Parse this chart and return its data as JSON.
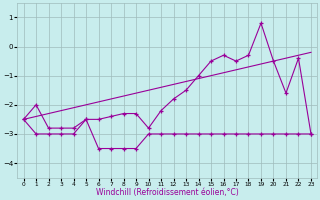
{
  "xlabel": "Windchill (Refroidissement éolien,°C)",
  "bg_color": "#c8eded",
  "line_color": "#990099",
  "grid_color": "#9fbcbc",
  "ylim": [
    -4.5,
    1.5
  ],
  "xlim": [
    -0.5,
    23.5
  ],
  "yticks": [
    -4,
    -3,
    -2,
    -1,
    0,
    1
  ],
  "xticks": [
    0,
    1,
    2,
    3,
    4,
    5,
    6,
    7,
    8,
    9,
    10,
    11,
    12,
    13,
    14,
    15,
    16,
    17,
    18,
    19,
    20,
    21,
    22,
    23
  ],
  "line_jagged_x": [
    0,
    1,
    2,
    3,
    4,
    5,
    6,
    7,
    8,
    9,
    10,
    11,
    12,
    13,
    14,
    15,
    16,
    17,
    18,
    19,
    20,
    21,
    22,
    23
  ],
  "line_jagged_y": [
    -2.5,
    -2.0,
    -2.8,
    -2.8,
    -2.8,
    -2.5,
    -2.5,
    -2.4,
    -2.3,
    -2.3,
    -2.8,
    -2.2,
    -1.8,
    -1.5,
    -1.0,
    -0.5,
    -0.3,
    -0.5,
    -0.3,
    0.8,
    -0.5,
    -1.6,
    -0.4,
    -3.0
  ],
  "line_flat_x": [
    0,
    1,
    2,
    3,
    4,
    5,
    6,
    7,
    8,
    9,
    10,
    11,
    12,
    13,
    14,
    15,
    16,
    17,
    18,
    19,
    20,
    21,
    22,
    23
  ],
  "line_flat_y": [
    -2.5,
    -3.0,
    -3.0,
    -3.0,
    -3.0,
    -2.5,
    -3.5,
    -3.5,
    -3.5,
    -3.5,
    -3.0,
    -3.0,
    -3.0,
    -3.0,
    -3.0,
    -3.0,
    -3.0,
    -3.0,
    -3.0,
    -3.0,
    -3.0,
    -3.0,
    -3.0,
    -3.0
  ],
  "line_trend_x": [
    0,
    23
  ],
  "line_trend_y": [
    -2.5,
    -0.2
  ]
}
